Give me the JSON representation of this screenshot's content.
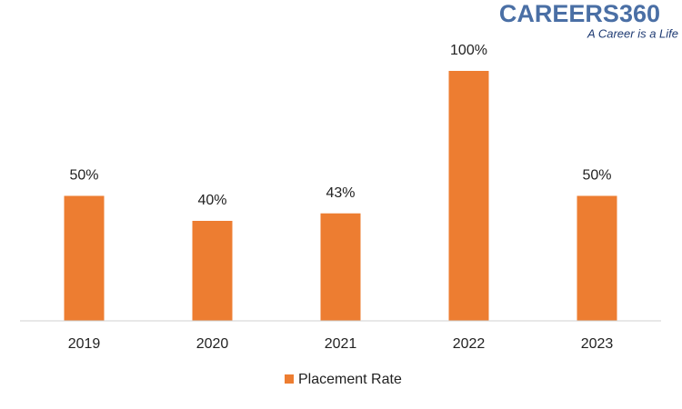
{
  "chart_data": {
    "type": "bar",
    "annotations": [
      "CAREERS360",
      "A Career is a Life"
    ],
    "categories": [
      "2019",
      "2020",
      "2021",
      "2022",
      "2023"
    ],
    "series": [
      {
        "name": "Placement Rate",
        "color": "#ed7d31",
        "values": [
          50,
          40,
          43,
          100,
          50
        ],
        "value_labels": [
          "50%",
          "40%",
          "43%",
          "100%",
          "50%"
        ]
      }
    ],
    "ylim": [
      0,
      100
    ],
    "legend": "bottom"
  }
}
